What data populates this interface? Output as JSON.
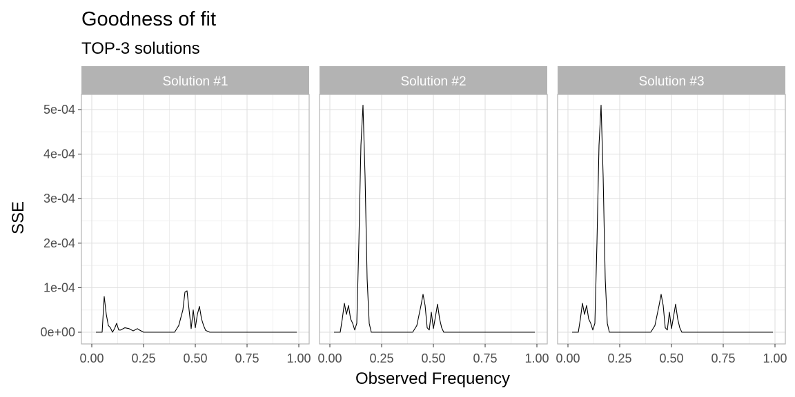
{
  "title": "Goodness of fit",
  "subtitle": "TOP-3 solutions",
  "colors": {
    "strip_fill": "#b3b3b3",
    "strip_text": "#ffffff",
    "grid_major": "#dedede",
    "grid_minor": "#efefef",
    "panel_border": "#b3b3b3",
    "line": "#000000"
  },
  "chart_data": {
    "type": "line",
    "facet": true,
    "xlabel": "Observed Frequency",
    "ylabel": "SSE",
    "xlim": [
      0,
      1
    ],
    "ylim": [
      0,
      0.0005
    ],
    "x_ticks": [
      "0.00",
      "0.25",
      "0.50",
      "0.75",
      "1.00"
    ],
    "y_ticks": [
      "0e+00",
      "1e-04",
      "2e-04",
      "3e-04",
      "4e-04",
      "5e-04"
    ],
    "grid": true,
    "series": [
      {
        "name": "Solution #1",
        "x": [
          0.02,
          0.05,
          0.06,
          0.07,
          0.08,
          0.09,
          0.1,
          0.11,
          0.12,
          0.13,
          0.14,
          0.16,
          0.18,
          0.2,
          0.22,
          0.23,
          0.25,
          0.3,
          0.4,
          0.42,
          0.44,
          0.45,
          0.46,
          0.47,
          0.48,
          0.49,
          0.5,
          0.51,
          0.52,
          0.53,
          0.54,
          0.55,
          0.57,
          0.6,
          0.7,
          0.8,
          0.9,
          0.99
        ],
        "y": [
          0,
          0,
          8e-05,
          4e-05,
          1.5e-05,
          1e-05,
          0,
          8e-06,
          2e-05,
          5e-06,
          5e-06,
          1e-05,
          8e-06,
          3e-06,
          8e-06,
          5e-06,
          0,
          0,
          0,
          1.5e-05,
          5e-05,
          9e-05,
          9.3e-05,
          5e-05,
          8e-06,
          5e-05,
          1e-05,
          4e-05,
          5.8e-05,
          3e-05,
          1.5e-05,
          4e-06,
          0,
          0,
          0,
          0,
          0,
          0
        ]
      },
      {
        "name": "Solution #2",
        "x": [
          0.02,
          0.05,
          0.06,
          0.07,
          0.08,
          0.09,
          0.1,
          0.11,
          0.12,
          0.13,
          0.14,
          0.15,
          0.16,
          0.17,
          0.18,
          0.19,
          0.2,
          0.25,
          0.3,
          0.4,
          0.42,
          0.44,
          0.45,
          0.46,
          0.47,
          0.48,
          0.49,
          0.5,
          0.51,
          0.52,
          0.53,
          0.54,
          0.55,
          0.57,
          0.6,
          0.7,
          0.8,
          0.9,
          0.99
        ],
        "y": [
          0,
          0,
          3e-05,
          6.5e-05,
          4e-05,
          6e-05,
          3e-05,
          2e-05,
          5e-06,
          2e-05,
          0.0002,
          0.00042,
          0.00051,
          0.00035,
          0.00012,
          2e-05,
          0,
          0,
          0,
          0,
          1.5e-05,
          6e-05,
          8.5e-05,
          6e-05,
          1e-05,
          5e-06,
          4.5e-05,
          8e-06,
          3.5e-05,
          6.3e-05,
          3e-05,
          1e-05,
          0,
          0,
          0,
          0,
          0,
          0,
          0
        ]
      },
      {
        "name": "Solution #3",
        "x": [
          0.02,
          0.05,
          0.06,
          0.07,
          0.08,
          0.09,
          0.1,
          0.11,
          0.12,
          0.13,
          0.14,
          0.15,
          0.16,
          0.17,
          0.18,
          0.19,
          0.2,
          0.25,
          0.3,
          0.4,
          0.42,
          0.44,
          0.45,
          0.46,
          0.47,
          0.48,
          0.49,
          0.5,
          0.51,
          0.52,
          0.53,
          0.54,
          0.55,
          0.57,
          0.6,
          0.7,
          0.8,
          0.9,
          0.99
        ],
        "y": [
          0,
          0,
          3e-05,
          6.5e-05,
          4e-05,
          6e-05,
          3e-05,
          2e-05,
          5e-06,
          2e-05,
          0.0002,
          0.00042,
          0.00051,
          0.00035,
          0.00012,
          2e-05,
          0,
          0,
          0,
          0,
          1.5e-05,
          6e-05,
          8.5e-05,
          6e-05,
          1e-05,
          5e-06,
          4.5e-05,
          8e-06,
          3.5e-05,
          6.3e-05,
          3e-05,
          1e-05,
          0,
          0,
          0,
          0,
          0,
          0,
          0
        ]
      }
    ]
  }
}
